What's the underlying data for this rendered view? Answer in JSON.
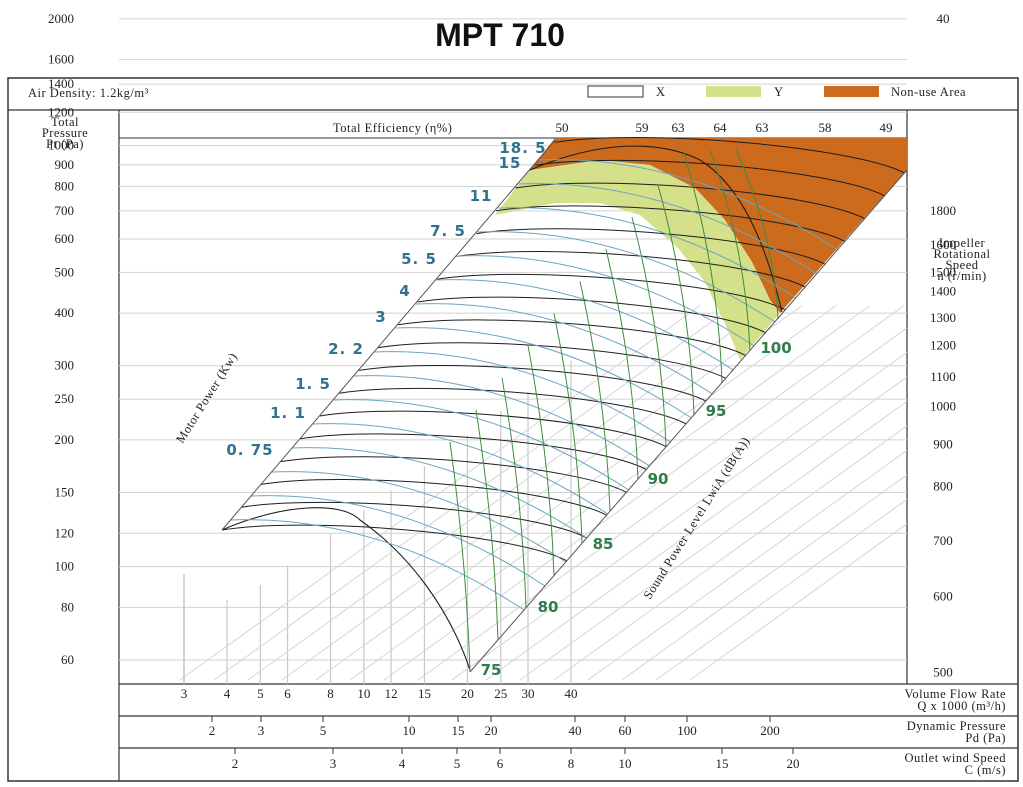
{
  "chart_data": {
    "type": "fan-performance",
    "title": "MPT 710",
    "air_density": "Air Density: 1.2kg/m³",
    "legend": [
      {
        "label": "X",
        "color": "#ffffff"
      },
      {
        "label": "Y",
        "color": "#d4e08a"
      },
      {
        "label": "Non-use Area",
        "color": "#cc6a1e"
      }
    ],
    "y_label": [
      "Total",
      "Pressure",
      "Pt (Pa)"
    ],
    "y_ticks": [
      60,
      80,
      100,
      120,
      150,
      200,
      250,
      300,
      400,
      500,
      600,
      700,
      800,
      900,
      1000,
      1200,
      1400,
      1600,
      2000
    ],
    "y_scale": "log",
    "x_label": [
      "Volume Flow Rate",
      "Q x 1000 (m³/h)"
    ],
    "x_ticks": [
      3,
      4,
      5,
      6,
      8,
      10,
      12,
      15,
      20,
      25,
      30,
      40
    ],
    "x_scale": "log",
    "efficiency_label": "Total Efficiency (η%)",
    "efficiency_ticks": [
      "50",
      "59",
      "63",
      "64",
      "63",
      "58",
      "49"
    ],
    "speed_label": [
      "Impeller",
      "Rotational",
      "Speed",
      "n (r/min)"
    ],
    "speed_ticks": [
      {
        "v": "40",
        "pa": 2000
      },
      {
        "v": "1800",
        "pa": 700
      },
      {
        "v": "1600",
        "pa": 580
      },
      {
        "v": "1500",
        "pa": 500
      },
      {
        "v": "1400",
        "pa": 450
      },
      {
        "v": "1300",
        "pa": 390
      },
      {
        "v": "1200",
        "pa": 335
      },
      {
        "v": "1100",
        "pa": 282
      },
      {
        "v": "1000",
        "pa": 240
      },
      {
        "v": "900",
        "pa": 195
      },
      {
        "v": "800",
        "pa": 155
      },
      {
        "v": "700",
        "pa": 115
      },
      {
        "v": "600",
        "pa": 85
      },
      {
        "v": "500",
        "pa": 56
      }
    ],
    "motor_power_label": "Motor Power (Kw)",
    "motor_power": [
      "0. 75",
      "1. 1",
      "1. 5",
      "2. 2",
      "3",
      "4",
      "5. 5",
      "7. 5",
      "11",
      "15",
      "18. 5"
    ],
    "sound_label": "Sound Power Level LwiA (dB(A))",
    "sound_levels": [
      "75",
      "80",
      "85",
      "90",
      "95",
      "100"
    ],
    "pd_label": [
      "Dynamic Pressure",
      "Pd (Pa)"
    ],
    "pd_ticks": [
      "2",
      "3",
      "5",
      "10",
      "15",
      "20",
      "40",
      "60",
      "100",
      "200"
    ],
    "c_label": [
      "Outlet wind Speed",
      "C (m/s)"
    ],
    "c_ticks": [
      "2",
      "3",
      "4",
      "5",
      "6",
      "8",
      "10",
      "15",
      "20"
    ],
    "colors": {
      "orange": "#cc6a1e",
      "yellow": "#d4e08a",
      "power_lines": "#6aa6c0",
      "speed_lines": "#3f8c3f"
    }
  }
}
